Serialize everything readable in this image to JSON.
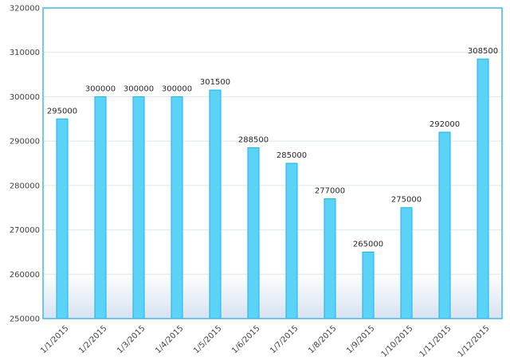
{
  "chart_data": {
    "type": "bar",
    "categories": [
      "1/1/2015",
      "1/2/2015",
      "1/3/2015",
      "1/4/2015",
      "1/5/2015",
      "1/6/2015",
      "1/7/2015",
      "1/8/2015",
      "1/9/2015",
      "1/10/2015",
      "1/11/2015",
      "1/12/2015"
    ],
    "values": [
      295000,
      300000,
      300000,
      300000,
      301500,
      288500,
      285000,
      277000,
      265000,
      275000,
      292000,
      308500
    ],
    "data_labels": [
      "295000",
      "300000",
      "300000",
      "300000",
      "301500",
      "288500",
      "285000",
      "277000",
      "265000",
      "275000",
      "292000",
      "308500"
    ],
    "y_ticks": [
      "250000",
      "260000",
      "270000",
      "280000",
      "290000",
      "300000",
      "310000",
      "320000"
    ],
    "y_tick_values": [
      250000,
      260000,
      270000,
      280000,
      290000,
      300000,
      310000,
      320000
    ],
    "ylim": [
      250000,
      320000
    ],
    "grid": true,
    "title": "",
    "xlabel": "",
    "ylabel": "",
    "colors": {
      "bar_fill": "#5bd3f7",
      "bar_stroke": "#1fb2e4",
      "grid": "#d9e6ee",
      "frame": "#3fb8e8",
      "gradient_bottom": "#d7e3f1"
    }
  }
}
